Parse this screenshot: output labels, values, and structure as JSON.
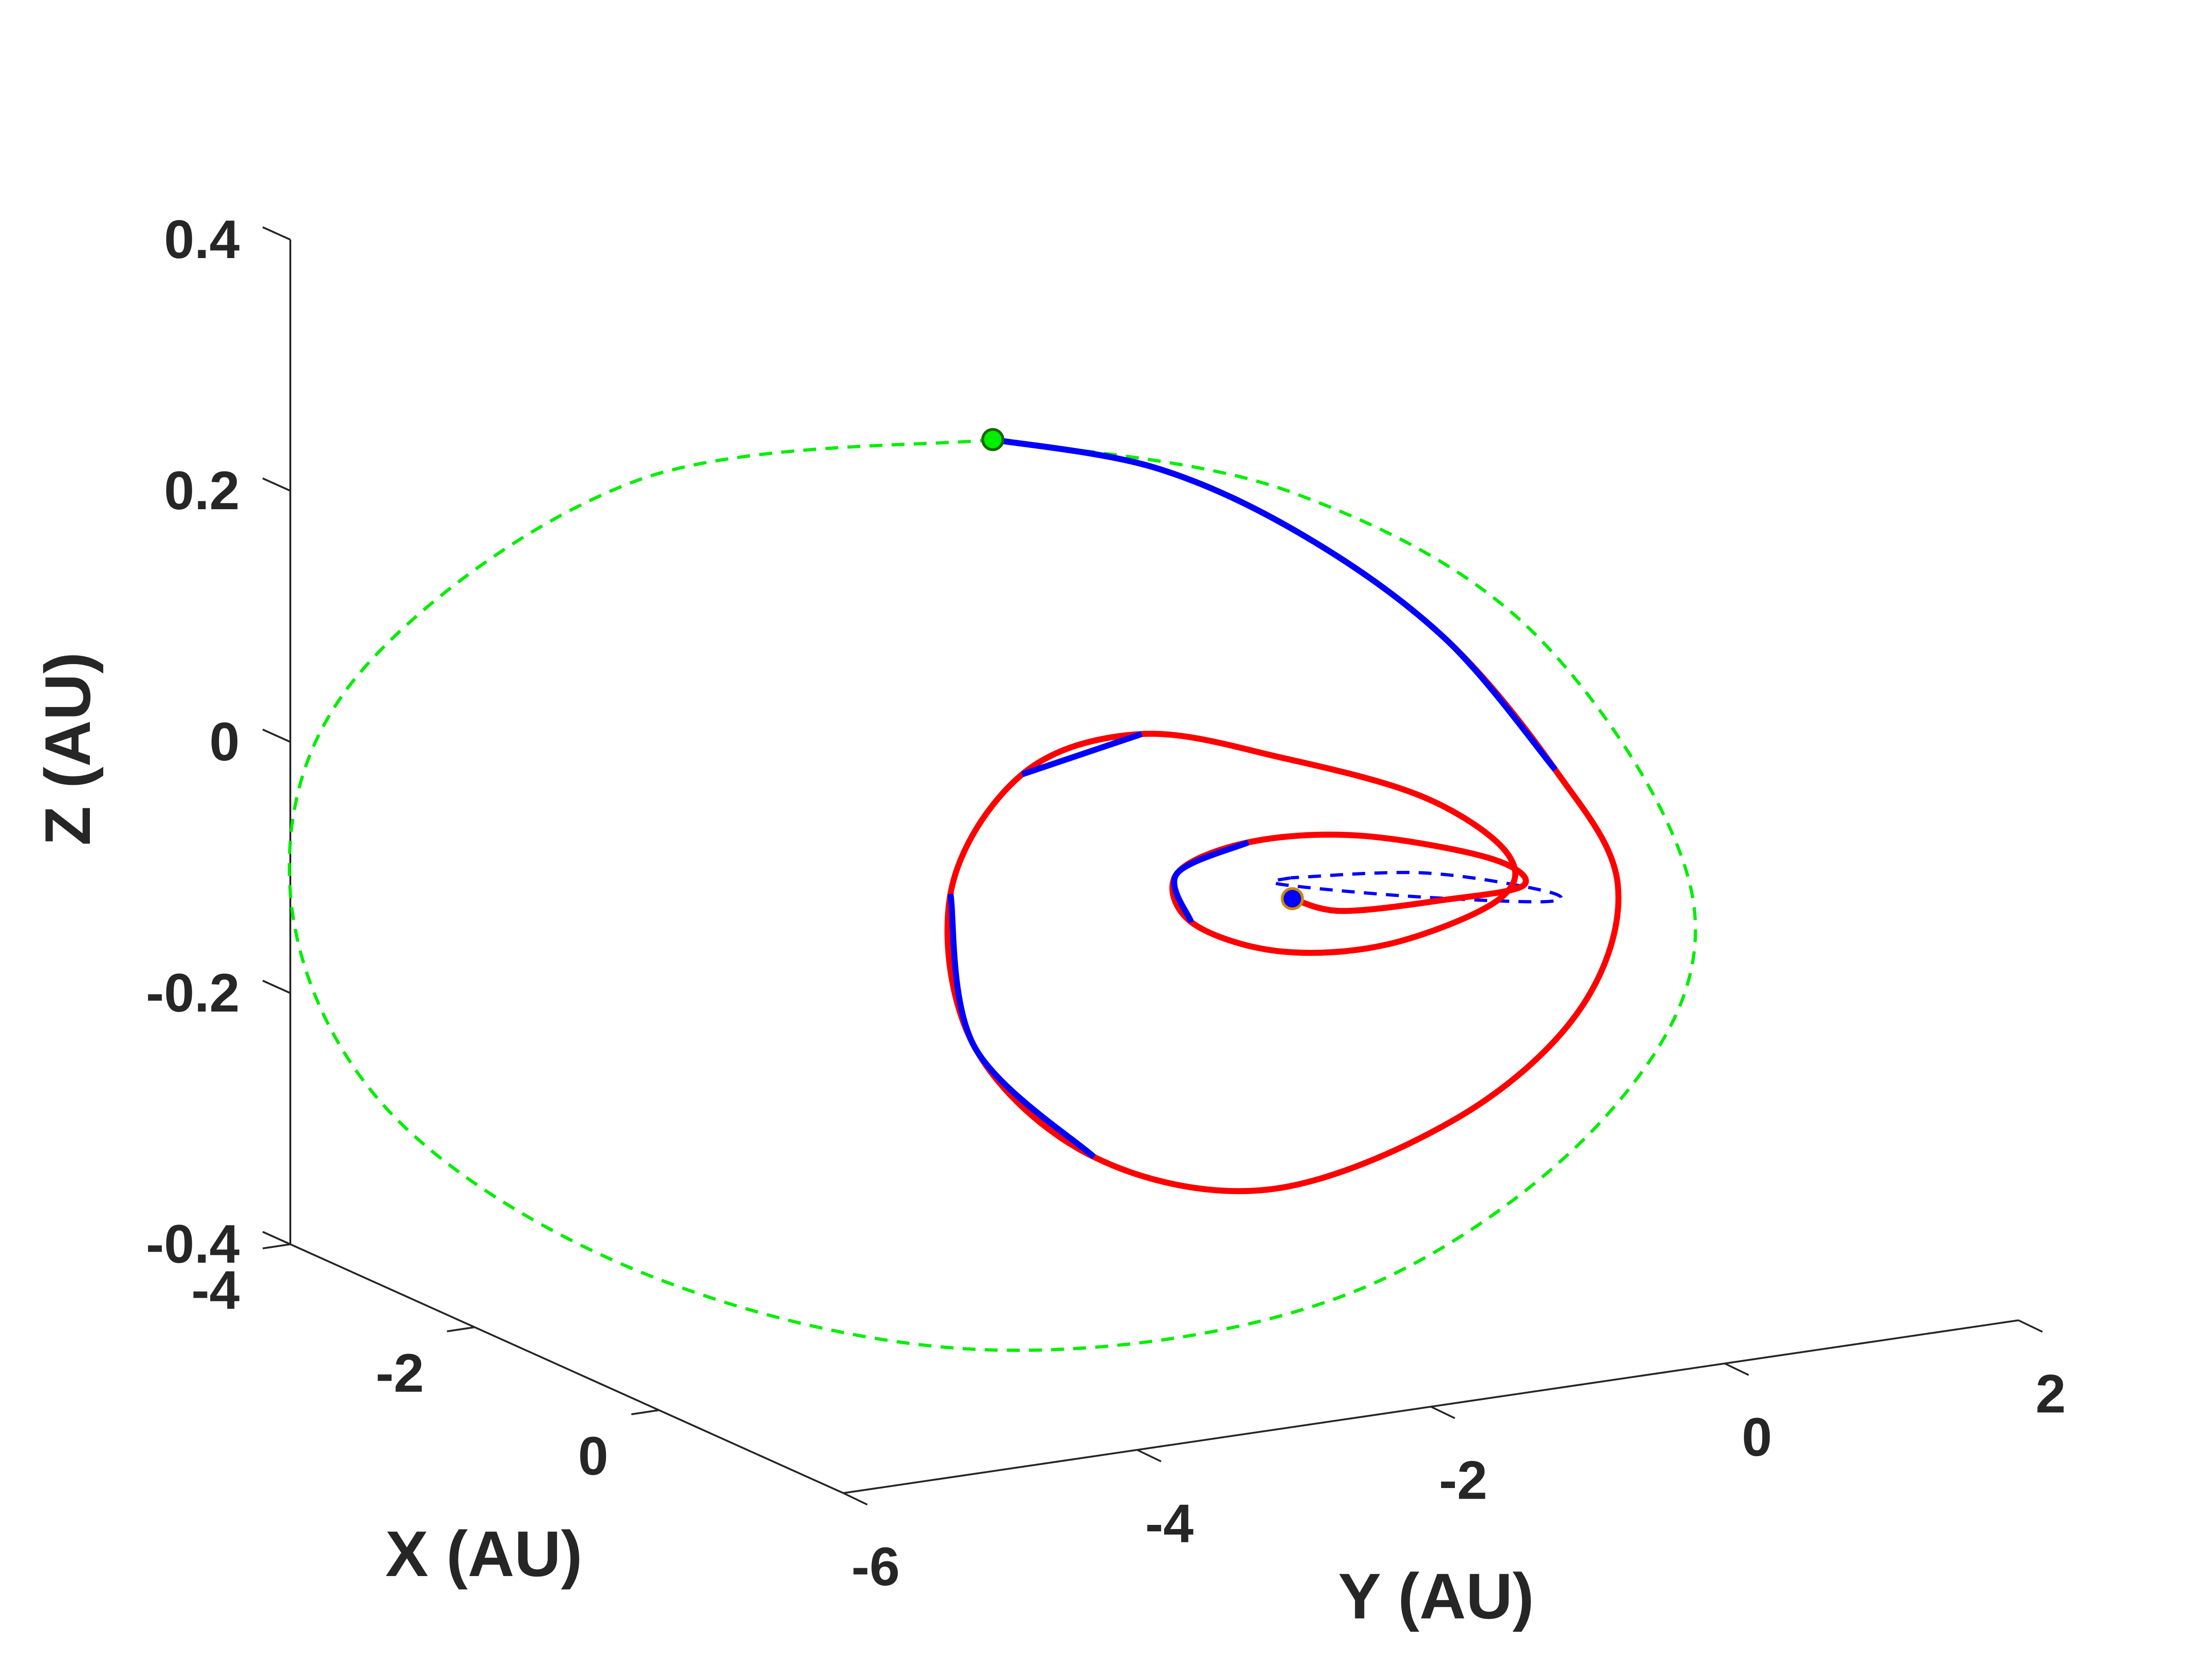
{
  "chart_data": {
    "type": "line",
    "view": "3d",
    "title": "",
    "xlabel": "X (AU)",
    "ylabel": "Y (AU)",
    "zlabel": "Z (AU)",
    "xlim": [
      -4,
      2
    ],
    "ylim": [
      -6,
      2
    ],
    "zlim": [
      -0.4,
      0.4
    ],
    "xticks": [
      "-4",
      "-2",
      "0"
    ],
    "yticks": [
      "-6",
      "-4",
      "-2",
      "0",
      "2"
    ],
    "zticks": [
      "0.4",
      "0.2",
      "0",
      "-0.2",
      "-0.4"
    ],
    "grid": false,
    "legend": "none",
    "colors": {
      "transfer_thrust": "#ff0000",
      "transfer_coast": "#0000ff",
      "target_orbit": "#00ee00",
      "departure_orbit": "#0000ff",
      "axes": "#262626"
    },
    "series": [
      {
        "style": "dashed",
        "color": "#00ee00",
        "points": [
          [
            -1.0,
            -3.1,
            0.29
          ],
          [
            -2.8,
            -4.4,
            0.22
          ],
          [
            -3.9,
            -5.6,
            0.05
          ],
          [
            -4.0,
            -6.0,
            -0.12
          ],
          [
            -3.4,
            -5.7,
            -0.28
          ],
          [
            -2.0,
            -4.8,
            -0.38
          ],
          [
            -0.2,
            -3.6,
            -0.4
          ],
          [
            1.1,
            -2.0,
            -0.34
          ],
          [
            1.7,
            -0.6,
            -0.2
          ],
          [
            1.5,
            0.1,
            -0.05
          ],
          [
            0.6,
            -0.4,
            0.14
          ],
          [
            -0.2,
            -1.6,
            0.25
          ],
          [
            -1.0,
            -3.1,
            0.29
          ]
        ]
      },
      {
        "style": "dashed",
        "color": "#0000ff",
        "points": [
          [
            0.0,
            -1.7,
            -0.05
          ],
          [
            -0.6,
            -1.4,
            -0.08
          ],
          [
            -0.5,
            -0.6,
            -0.1
          ],
          [
            0.2,
            -0.1,
            -0.09
          ],
          [
            0.7,
            -0.4,
            -0.06
          ],
          [
            0.5,
            -1.1,
            -0.04
          ],
          [
            0.0,
            -1.7,
            -0.05
          ]
        ]
      },
      {
        "style": "solid",
        "color": "#ff0000",
        "coast_color": "#0000ff",
        "points": [
          [
            -1.0,
            -3.1,
            0.29
          ],
          [
            -0.5,
            -2.3,
            0.27
          ],
          [
            0.0,
            -1.6,
            0.22
          ],
          [
            0.4,
            -0.9,
            0.14
          ],
          [
            0.8,
            -0.4,
            0.04
          ],
          [
            1.0,
            -0.1,
            -0.05
          ],
          [
            0.9,
            -0.3,
            -0.15
          ],
          [
            0.5,
            -0.9,
            -0.24
          ],
          [
            -0.1,
            -1.8,
            -0.3
          ],
          [
            -0.7,
            -2.6,
            -0.28
          ],
          [
            -1.2,
            -3.1,
            -0.2
          ],
          [
            -1.3,
            -3.2,
            -0.08
          ],
          [
            -1.0,
            -2.9,
            0.02
          ],
          [
            -0.5,
            -2.4,
            0.06
          ],
          [
            0.1,
            -1.8,
            0.05
          ],
          [
            0.5,
            -1.1,
            0.02
          ],
          [
            0.6,
            -0.6,
            -0.03
          ],
          [
            0.5,
            -0.6,
            -0.07
          ],
          [
            0.1,
            -1.1,
            -0.11
          ],
          [
            -0.3,
            -1.6,
            -0.12
          ],
          [
            -0.6,
            -2.0,
            -0.1
          ],
          [
            -0.6,
            -2.1,
            -0.06
          ],
          [
            -0.3,
            -1.8,
            -0.03
          ],
          [
            0.1,
            -1.3,
            -0.02
          ],
          [
            0.4,
            -0.6,
            -0.04
          ],
          [
            0.3,
            -0.3,
            -0.07
          ],
          [
            -0.1,
            -0.6,
            -0.09
          ],
          [
            -0.4,
            -1.1,
            -0.1
          ],
          [
            -0.3,
            -1.5,
            -0.08
          ]
        ],
        "coast_segments": [
          [
            0,
            4
          ],
          [
            9,
            11
          ],
          [
            12,
            13
          ],
          [
            20,
            22
          ]
        ]
      }
    ],
    "markers": [
      {
        "point": [
          -1.0,
          -3.1,
          0.29
        ],
        "fill": "#00ee00",
        "edge": "#1a6600"
      },
      {
        "point": [
          -0.3,
          -1.5,
          -0.08
        ],
        "fill": "#0000ff",
        "edge": "#cc8800"
      }
    ]
  }
}
